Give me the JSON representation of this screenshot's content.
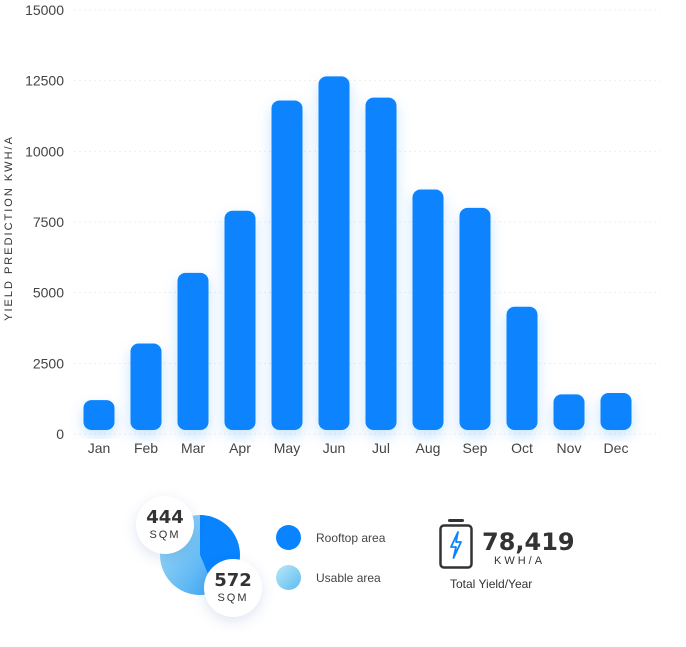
{
  "chart_data": {
    "type": "bar",
    "categories": [
      "Jan",
      "Feb",
      "Mar",
      "Apr",
      "May",
      "Jun",
      "Jul",
      "Aug",
      "Sep",
      "Oct",
      "Nov",
      "Dec"
    ],
    "values": [
      1200,
      3200,
      5700,
      7900,
      11800,
      12650,
      11900,
      8650,
      8000,
      4500,
      1400,
      1450
    ],
    "ylabel": "YIELD PREDICTION KWH/A",
    "xlabel": "",
    "ylim": [
      0,
      15000
    ],
    "yticks": [
      "0",
      "2500",
      "5000",
      "7500",
      "10000",
      "12500",
      "15000"
    ],
    "grid": true,
    "bar_color": "#0984FE"
  },
  "area_summary": {
    "rooftop": {
      "value": "444",
      "unit": "SQM",
      "label": "Rooftop area",
      "color": "#0984FE"
    },
    "usable": {
      "value": "572",
      "unit": "SQM",
      "label": "Usable area",
      "color": "#7FCBF2"
    },
    "pie_fractions": [
      0.437,
      0.563
    ]
  },
  "total_yield": {
    "value": "78,419",
    "unit": "KWH/A",
    "caption": "Total Yield/Year",
    "icon": "battery-charging-icon"
  }
}
